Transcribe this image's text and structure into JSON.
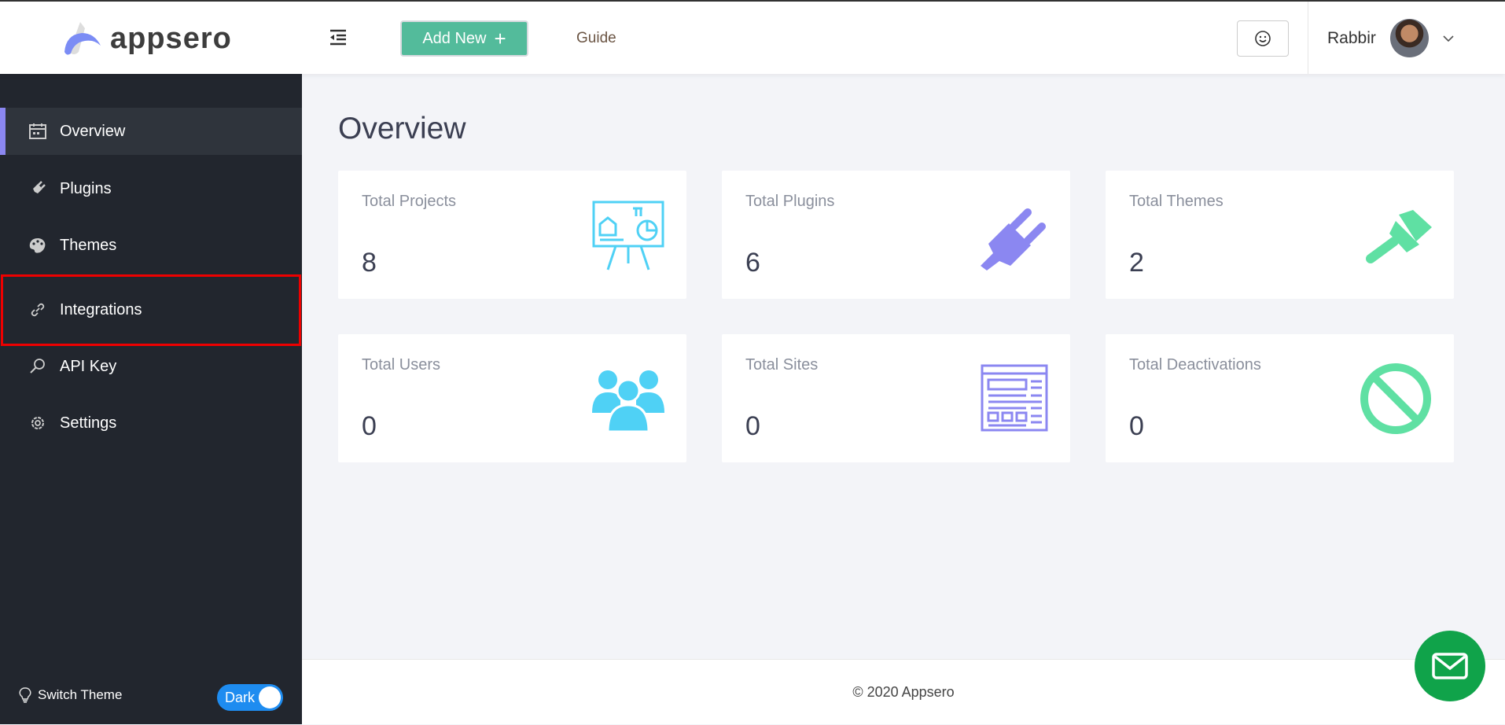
{
  "header": {
    "logo": "appsero",
    "add_new": "Add New",
    "add_icon": "+",
    "guide": "Guide",
    "user_name": "Rabbir"
  },
  "sidebar": {
    "items": [
      {
        "label": "Overview",
        "icon": "calendar-icon",
        "active": true
      },
      {
        "label": "Plugins",
        "icon": "plug-icon"
      },
      {
        "label": "Themes",
        "icon": "palette-icon"
      },
      {
        "label": "Integrations",
        "icon": "link-icon",
        "highlighted": true
      },
      {
        "label": "API Key",
        "icon": "key-icon"
      },
      {
        "label": "Settings",
        "icon": "gear-icon"
      }
    ],
    "switch_theme": "Switch Theme",
    "toggle_label": "Dark"
  },
  "main": {
    "title": "Overview",
    "cards": [
      {
        "label": "Total Projects",
        "value": "8",
        "icon": "presentation-board-icon",
        "color": "#4fd1f5"
      },
      {
        "label": "Total Plugins",
        "value": "6",
        "icon": "plug-icon",
        "color": "#8b87f1"
      },
      {
        "label": "Total Themes",
        "value": "2",
        "icon": "paint-brush-icon",
        "color": "#5fe0a3"
      },
      {
        "label": "Total Users",
        "value": "0",
        "icon": "users-icon",
        "color": "#4fd1f5"
      },
      {
        "label": "Total Sites",
        "value": "0",
        "icon": "website-layout-icon",
        "color": "#8b87f1"
      },
      {
        "label": "Total Deactivations",
        "value": "0",
        "icon": "ban-icon",
        "color": "#5fe0a3"
      }
    ]
  },
  "footer": {
    "copyright": "© 2020 Appsero"
  },
  "colors": {
    "accent": "#53bb9b",
    "sidebar": "#22262e",
    "active_bar": "#8b87f1",
    "highlight": "#ee0000"
  }
}
